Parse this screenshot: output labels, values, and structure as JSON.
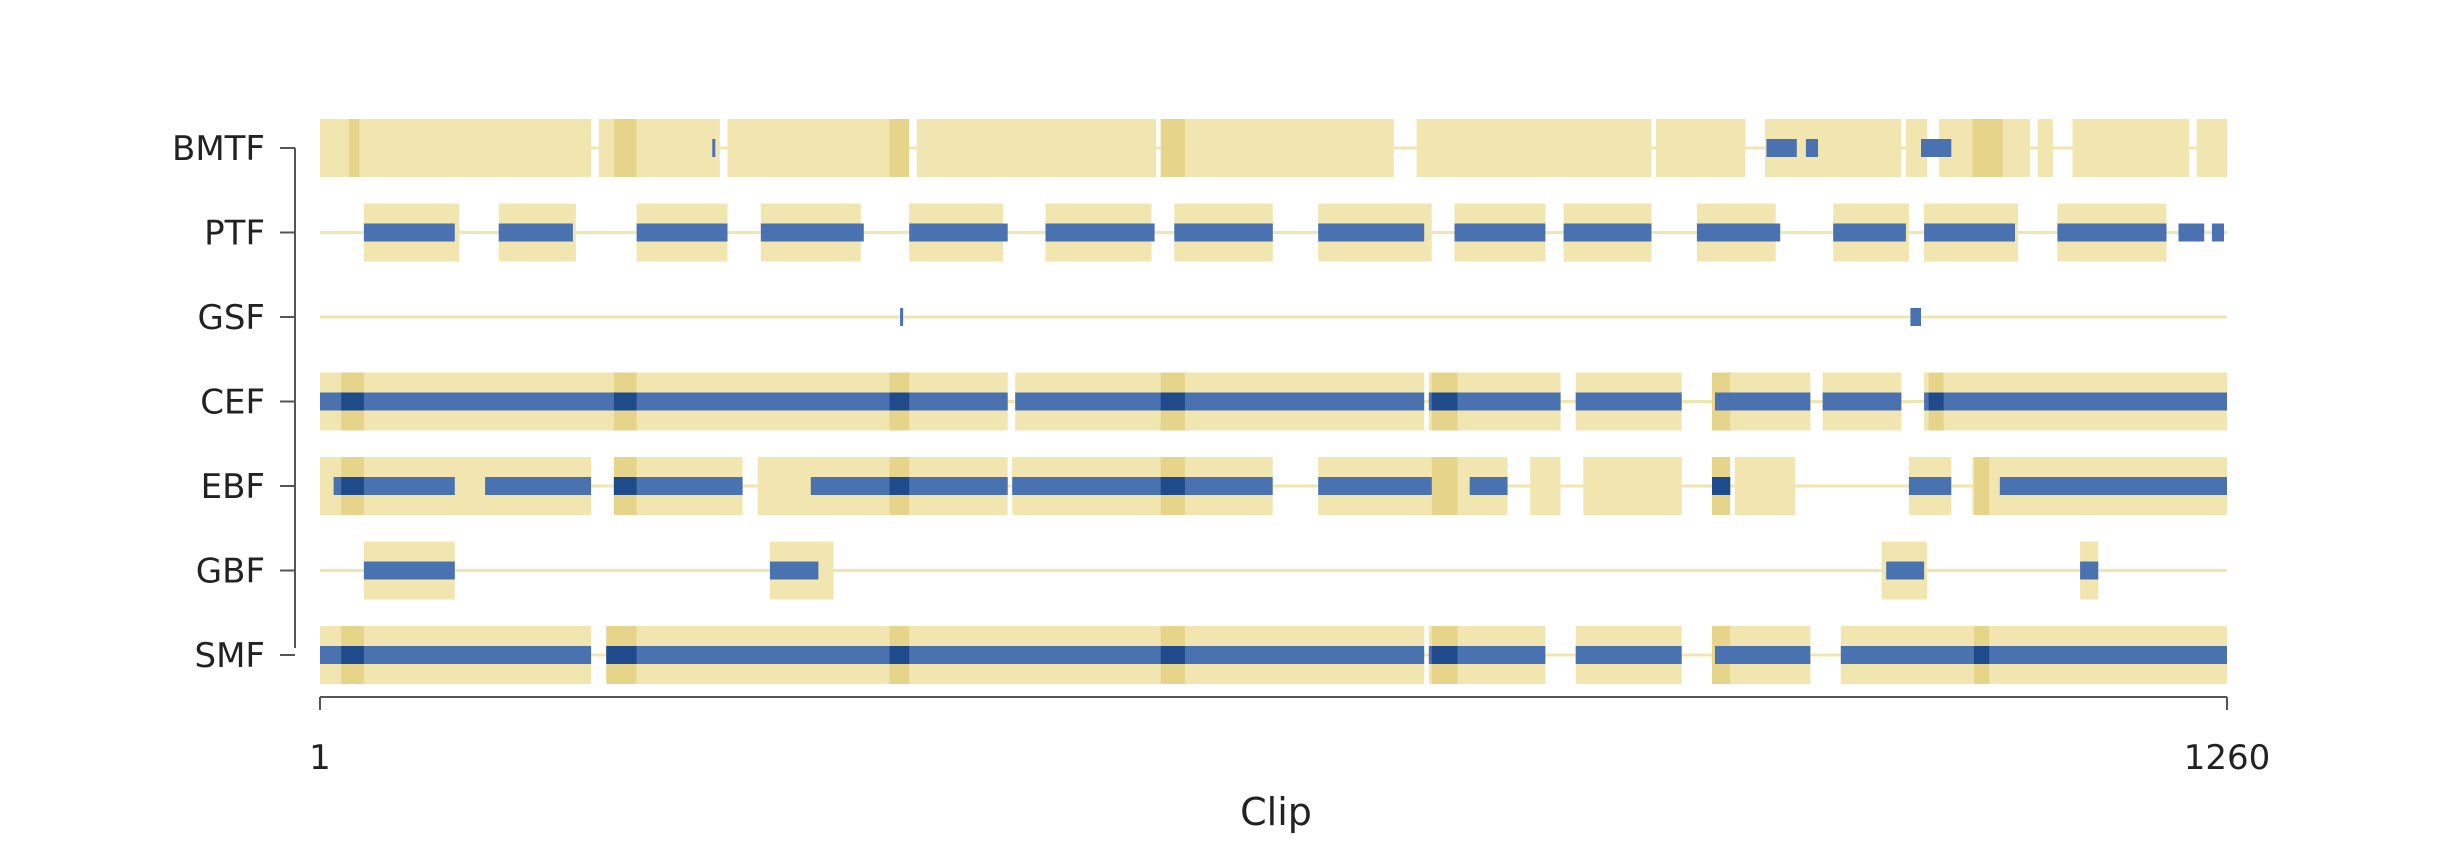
{
  "chart_data": {
    "type": "heatmap",
    "title": "",
    "xlabel": "Clip",
    "ylabel": "",
    "xlim": [
      1,
      1260
    ],
    "x_ticks": [
      "1",
      "1260"
    ],
    "grid": false,
    "legend": "none",
    "colors": {
      "low": "#f2e6b0",
      "dark_low": "#e6d48a",
      "high": "#4a72b0",
      "dark_high": "#1f4a8c"
    },
    "rows": [
      {
        "label": "BMTF",
        "yellow": [
          [
            1,
            180
          ],
          [
            185,
            265
          ],
          [
            270,
            390
          ],
          [
            395,
            553
          ],
          [
            557,
            710
          ],
          [
            725,
            880
          ],
          [
            883,
            942
          ],
          [
            955,
            1045
          ],
          [
            1048,
            1062
          ],
          [
            1070,
            1103
          ],
          [
            1108,
            1130
          ],
          [
            1135,
            1145
          ],
          [
            1158,
            1235
          ],
          [
            1240,
            1260
          ]
        ],
        "blue": [
          [
            260,
            262
          ],
          [
            956,
            976
          ],
          [
            982,
            990
          ],
          [
            1058,
            1078
          ]
        ],
        "dark": [
          [
            20,
            27
          ],
          [
            195,
            210
          ],
          [
            377,
            390
          ],
          [
            556,
            572
          ],
          [
            1092,
            1112
          ]
        ]
      },
      {
        "label": "PTF",
        "yellow": [
          [
            30,
            93
          ],
          [
            119,
            170
          ],
          [
            210,
            270
          ],
          [
            292,
            358
          ],
          [
            390,
            452
          ],
          [
            480,
            550
          ],
          [
            565,
            630
          ],
          [
            660,
            735
          ],
          [
            750,
            810
          ],
          [
            822,
            880
          ],
          [
            910,
            962
          ],
          [
            1000,
            1050
          ],
          [
            1060,
            1122
          ],
          [
            1148,
            1220
          ]
        ],
        "blue": [
          [
            30,
            90
          ],
          [
            119,
            168
          ],
          [
            210,
            270
          ],
          [
            292,
            360
          ],
          [
            390,
            455
          ],
          [
            480,
            552
          ],
          [
            565,
            630
          ],
          [
            660,
            730
          ],
          [
            718,
            722
          ],
          [
            750,
            810
          ],
          [
            822,
            880
          ],
          [
            910,
            965
          ],
          [
            1000,
            1048
          ],
          [
            1060,
            1120
          ],
          [
            1148,
            1220
          ],
          [
            1228,
            1245
          ],
          [
            1250,
            1258
          ]
        ],
        "dark": []
      },
      {
        "label": "GSF",
        "yellow": [],
        "blue": [
          [
            384,
            386
          ],
          [
            1051,
            1058
          ]
        ],
        "dark": []
      },
      {
        "label": "CEF",
        "yellow": [
          [
            1,
            455
          ],
          [
            460,
            730
          ],
          [
            733,
            820
          ],
          [
            830,
            900
          ],
          [
            922,
            985
          ],
          [
            993,
            1045
          ],
          [
            1060,
            1260
          ]
        ],
        "blue": [
          [
            1,
            455
          ],
          [
            460,
            730
          ],
          [
            733,
            820
          ],
          [
            830,
            900
          ],
          [
            922,
            985
          ],
          [
            993,
            1045
          ],
          [
            1060,
            1260
          ]
        ],
        "dark": [
          [
            15,
            30
          ],
          [
            195,
            210
          ],
          [
            377,
            390
          ],
          [
            556,
            572
          ],
          [
            735,
            752
          ],
          [
            920,
            932
          ],
          [
            1063,
            1073
          ]
        ]
      },
      {
        "label": "EBF",
        "yellow": [
          [
            1,
            180
          ],
          [
            195,
            280
          ],
          [
            290,
            455
          ],
          [
            458,
            630
          ],
          [
            660,
            735
          ],
          [
            735,
            785
          ],
          [
            800,
            820
          ],
          [
            835,
            900
          ],
          [
            935,
            975
          ],
          [
            1050,
            1078
          ],
          [
            1092,
            1260
          ]
        ],
        "blue": [
          [
            10,
            90
          ],
          [
            110,
            180
          ],
          [
            195,
            280
          ],
          [
            325,
            455
          ],
          [
            458,
            630
          ],
          [
            660,
            735
          ],
          [
            760,
            785
          ],
          [
            920,
            932
          ],
          [
            1050,
            1078
          ],
          [
            1110,
            1260
          ]
        ],
        "dark": [
          [
            15,
            30
          ],
          [
            195,
            210
          ],
          [
            377,
            390
          ],
          [
            556,
            572
          ],
          [
            735,
            752
          ],
          [
            920,
            932
          ],
          [
            1093,
            1103
          ]
        ]
      },
      {
        "label": "GBF",
        "yellow": [
          [
            30,
            90
          ],
          [
            298,
            340
          ],
          [
            1032,
            1062
          ],
          [
            1163,
            1175
          ]
        ],
        "blue": [
          [
            30,
            90
          ],
          [
            298,
            330
          ],
          [
            1035,
            1060
          ],
          [
            1163,
            1175
          ]
        ],
        "dark": []
      },
      {
        "label": "SMF",
        "yellow": [
          [
            1,
            180
          ],
          [
            190,
            730
          ],
          [
            733,
            810
          ],
          [
            830,
            900
          ],
          [
            922,
            985
          ],
          [
            1005,
            1260
          ]
        ],
        "blue": [
          [
            1,
            180
          ],
          [
            190,
            730
          ],
          [
            733,
            810
          ],
          [
            830,
            900
          ],
          [
            922,
            985
          ],
          [
            1005,
            1260
          ]
        ],
        "dark": [
          [
            15,
            30
          ],
          [
            190,
            210
          ],
          [
            377,
            390
          ],
          [
            556,
            572
          ],
          [
            735,
            752
          ],
          [
            920,
            932
          ],
          [
            1093,
            1103
          ],
          [
            1093,
            1103
          ]
        ]
      }
    ]
  }
}
